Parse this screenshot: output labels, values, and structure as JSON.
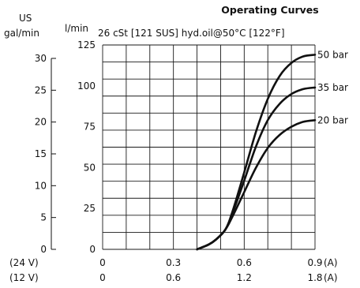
{
  "chart_data": {
    "type": "line",
    "title": "Operating Curves",
    "subtitle": "26 cSt [121 SUS] hyd.oil@50°C [122°F]",
    "left_axis": {
      "unit_line1": "US",
      "unit_line2": "gal/min",
      "ticks": [
        "30",
        "25",
        "20",
        "15",
        "10",
        "5",
        "0"
      ]
    },
    "y_axis": {
      "unit": "l/min",
      "ticks": [
        "125",
        "100",
        "75",
        "50",
        "25",
        "0"
      ],
      "ylim": [
        0,
        125
      ]
    },
    "x_axis_24v": {
      "label": "(24 V)",
      "ticks": [
        "0",
        "0.3",
        "0.6",
        "0.9"
      ],
      "unit": "(A)",
      "xlim": [
        0,
        0.9
      ]
    },
    "x_axis_12v": {
      "label": "(12 V)",
      "ticks": [
        "0",
        "0.6",
        "1.2",
        "1.8"
      ],
      "unit": "(A)",
      "xlim": [
        0,
        1.8
      ]
    },
    "grid": true,
    "series": [
      {
        "name": "50 bar",
        "x": [
          0.4,
          0.45,
          0.48,
          0.52,
          0.55,
          0.6,
          0.65,
          0.7,
          0.75,
          0.8,
          0.85,
          0.9
        ],
        "y": [
          0,
          3,
          6,
          12,
          23,
          47,
          72,
          92,
          106,
          114,
          118,
          119
        ]
      },
      {
        "name": "35 bar",
        "x": [
          0.4,
          0.45,
          0.48,
          0.52,
          0.55,
          0.6,
          0.65,
          0.7,
          0.75,
          0.8,
          0.85,
          0.9
        ],
        "y": [
          0,
          3,
          6,
          12,
          22,
          42,
          63,
          79,
          89,
          95,
          98,
          99
        ]
      },
      {
        "name": "20 bar",
        "x": [
          0.4,
          0.45,
          0.48,
          0.52,
          0.55,
          0.6,
          0.65,
          0.7,
          0.75,
          0.8,
          0.85,
          0.9
        ],
        "y": [
          0,
          3,
          6,
          12,
          20,
          35,
          50,
          62,
          70,
          75,
          78,
          79
        ]
      }
    ]
  }
}
